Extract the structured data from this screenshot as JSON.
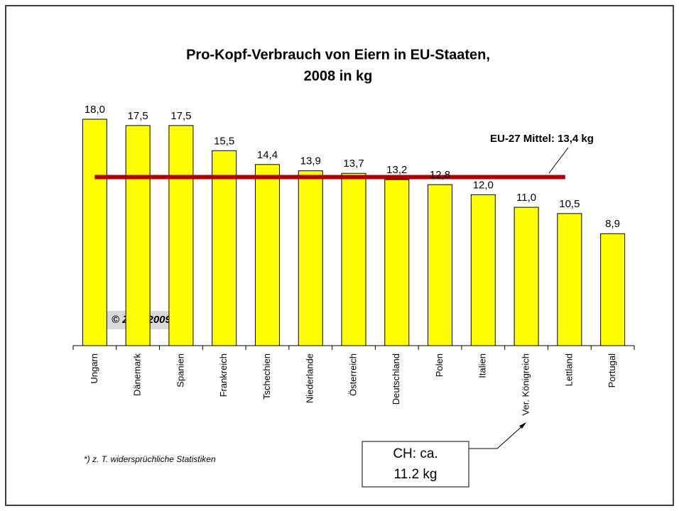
{
  "chart_data": {
    "type": "bar",
    "title": [
      "Pro-Kopf-Verbrauch von Eiern in EU-Staaten,",
      "2008 in kg"
    ],
    "categories": [
      "Ungarn",
      "Dänemark",
      "Spanien",
      "Frankreich",
      "Tschechien",
      "Niederlande",
      "Österreich",
      "Deutschland",
      "Polen",
      "Italien",
      "Ver. Königreich",
      "Lettland",
      "Portugal"
    ],
    "values": [
      18.0,
      17.5,
      17.5,
      15.5,
      14.4,
      13.9,
      13.7,
      13.2,
      12.8,
      12.0,
      11.0,
      10.5,
      8.9
    ],
    "value_labels": [
      "18,0",
      "17,5",
      "17,5",
      "15,5",
      "14,4",
      "13,9",
      "13,7",
      "13,2",
      "12,8",
      "12,0",
      "11,0",
      "10,5",
      "8,9"
    ],
    "color": "#ffff00",
    "ylim": [
      0,
      18
    ],
    "mean": {
      "value": 13.4,
      "label": "EU-27 Mittel: 13,4 kg",
      "color": "#b00000"
    },
    "copyright": "© ZMP 2009",
    "footnote": "*) z. T. widersprüchliche Statistiken",
    "callout": [
      "CH: ca.",
      "11.2 kg"
    ]
  }
}
